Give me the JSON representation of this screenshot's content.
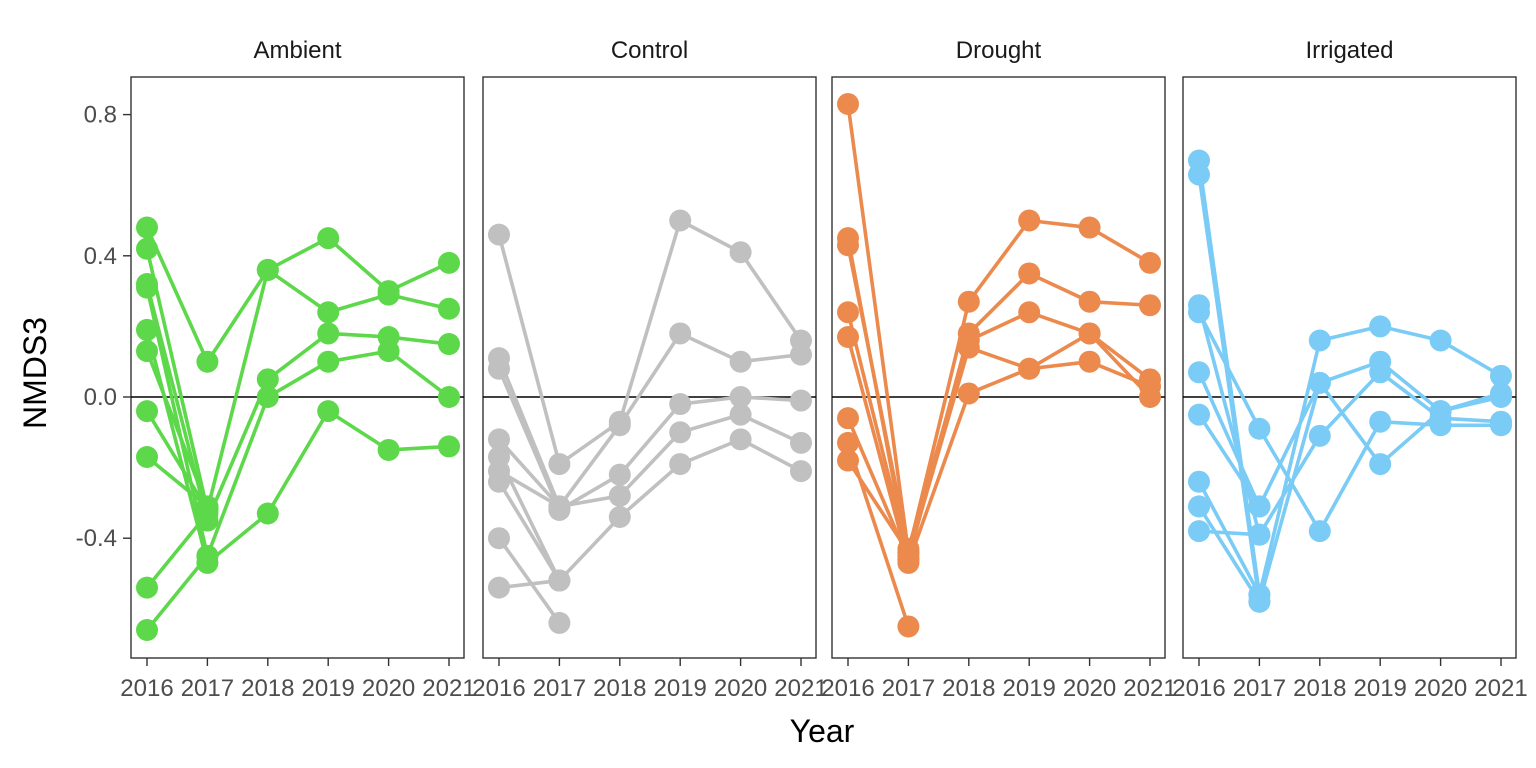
{
  "chart_data": {
    "type": "line",
    "xlabel": "Year",
    "ylabel": "NMDS3",
    "ylim": [
      -0.72,
      0.92
    ],
    "yticks": [
      0.8,
      0.4,
      0.0,
      -0.4
    ],
    "ytick_labels": [
      "0.8",
      "0.4",
      "0.0",
      "-0.4"
    ],
    "x": [
      2016,
      2017,
      2018,
      2019,
      2020,
      2021
    ],
    "xtick_labels": [
      "2016",
      "2017",
      "2018",
      "2019",
      "2020",
      "2021"
    ],
    "reference_line_y": 0,
    "grid": false,
    "panels": [
      {
        "label": "Ambient",
        "color": "#5DD84A",
        "series": [
          {
            "values": [
              0.48,
              0.1,
              0.36,
              0.45,
              0.3,
              0.38
            ]
          },
          {
            "values": [
              0.42,
              -0.32,
              0.36,
              0.24,
              0.29,
              0.25
            ]
          },
          {
            "values": [
              0.32,
              -0.35,
              0.05,
              0.18,
              0.17,
              0.15
            ]
          },
          {
            "values": [
              0.31,
              -0.45,
              0.0,
              0.1,
              0.13,
              0.0
            ]
          },
          {
            "values": [
              0.19,
              -0.47,
              -0.33,
              -0.04,
              -0.15,
              -0.14
            ]
          },
          {
            "values": [
              0.13,
              -0.31
            ]
          },
          {
            "values": [
              -0.04,
              -0.32
            ]
          },
          {
            "values": [
              -0.17,
              -0.31
            ]
          },
          {
            "values": [
              -0.54,
              -0.33
            ]
          },
          {
            "values": [
              -0.66,
              -0.45
            ]
          }
        ]
      },
      {
        "label": "Control",
        "color": "#C0C0C0",
        "series": [
          {
            "values": [
              0.46,
              -0.19,
              -0.07,
              0.5,
              0.41,
              0.16
            ]
          },
          {
            "values": [
              0.11,
              -0.31,
              -0.08,
              0.18,
              0.1,
              0.12
            ]
          },
          {
            "values": [
              0.08,
              -0.32,
              -0.22,
              -0.02,
              0.0,
              -0.01
            ]
          },
          {
            "values": [
              -0.12,
              -0.31,
              -0.28,
              -0.1,
              -0.05,
              -0.13
            ]
          },
          {
            "values": [
              -0.17,
              -0.52,
              -0.34,
              -0.19,
              -0.12,
              -0.21
            ]
          },
          {
            "values": [
              -0.21,
              -0.31
            ]
          },
          {
            "values": [
              -0.24,
              -0.52
            ]
          },
          {
            "values": [
              -0.4,
              -0.64
            ]
          },
          {
            "values": [
              -0.54,
              -0.52
            ]
          }
        ]
      },
      {
        "label": "Drought",
        "color": "#EC8A4E",
        "series": [
          {
            "values": [
              0.83,
              -0.44,
              0.27,
              0.5,
              0.48,
              0.38
            ]
          },
          {
            "values": [
              0.45,
              -0.46,
              0.18,
              0.35,
              0.27,
              0.26
            ]
          },
          {
            "values": [
              0.43,
              -0.43,
              0.16,
              0.24,
              0.18,
              0.05
            ]
          },
          {
            "values": [
              0.24,
              -0.45,
              0.14,
              0.08,
              0.1,
              0.03
            ]
          },
          {
            "values": [
              0.17,
              -0.47,
              0.01,
              0.08,
              0.18,
              0.0
            ]
          },
          {
            "values": [
              -0.06,
              -0.46
            ]
          },
          {
            "values": [
              -0.13,
              -0.65
            ]
          },
          {
            "values": [
              -0.18,
              -0.44
            ]
          }
        ]
      },
      {
        "label": "Irrigated",
        "color": "#7ACBF5",
        "series": [
          {
            "values": [
              0.67,
              -0.56,
              0.16,
              0.2,
              0.16,
              0.06
            ]
          },
          {
            "values": [
              0.63,
              -0.58,
              0.04,
              0.1,
              -0.04,
              0.0
            ]
          },
          {
            "values": [
              0.26,
              -0.39,
              -0.11,
              0.07,
              -0.06,
              -0.07
            ]
          },
          {
            "values": [
              0.24,
              -0.09,
              -0.38,
              -0.07,
              -0.08,
              -0.08
            ]
          },
          {
            "values": [
              0.07,
              -0.31,
              0.04,
              -0.19,
              -0.04,
              0.01
            ]
          },
          {
            "values": [
              -0.05,
              -0.31
            ]
          },
          {
            "values": [
              -0.24,
              -0.56
            ]
          },
          {
            "values": [
              -0.31,
              -0.58
            ]
          },
          {
            "values": [
              -0.38,
              -0.39
            ]
          }
        ]
      }
    ]
  }
}
